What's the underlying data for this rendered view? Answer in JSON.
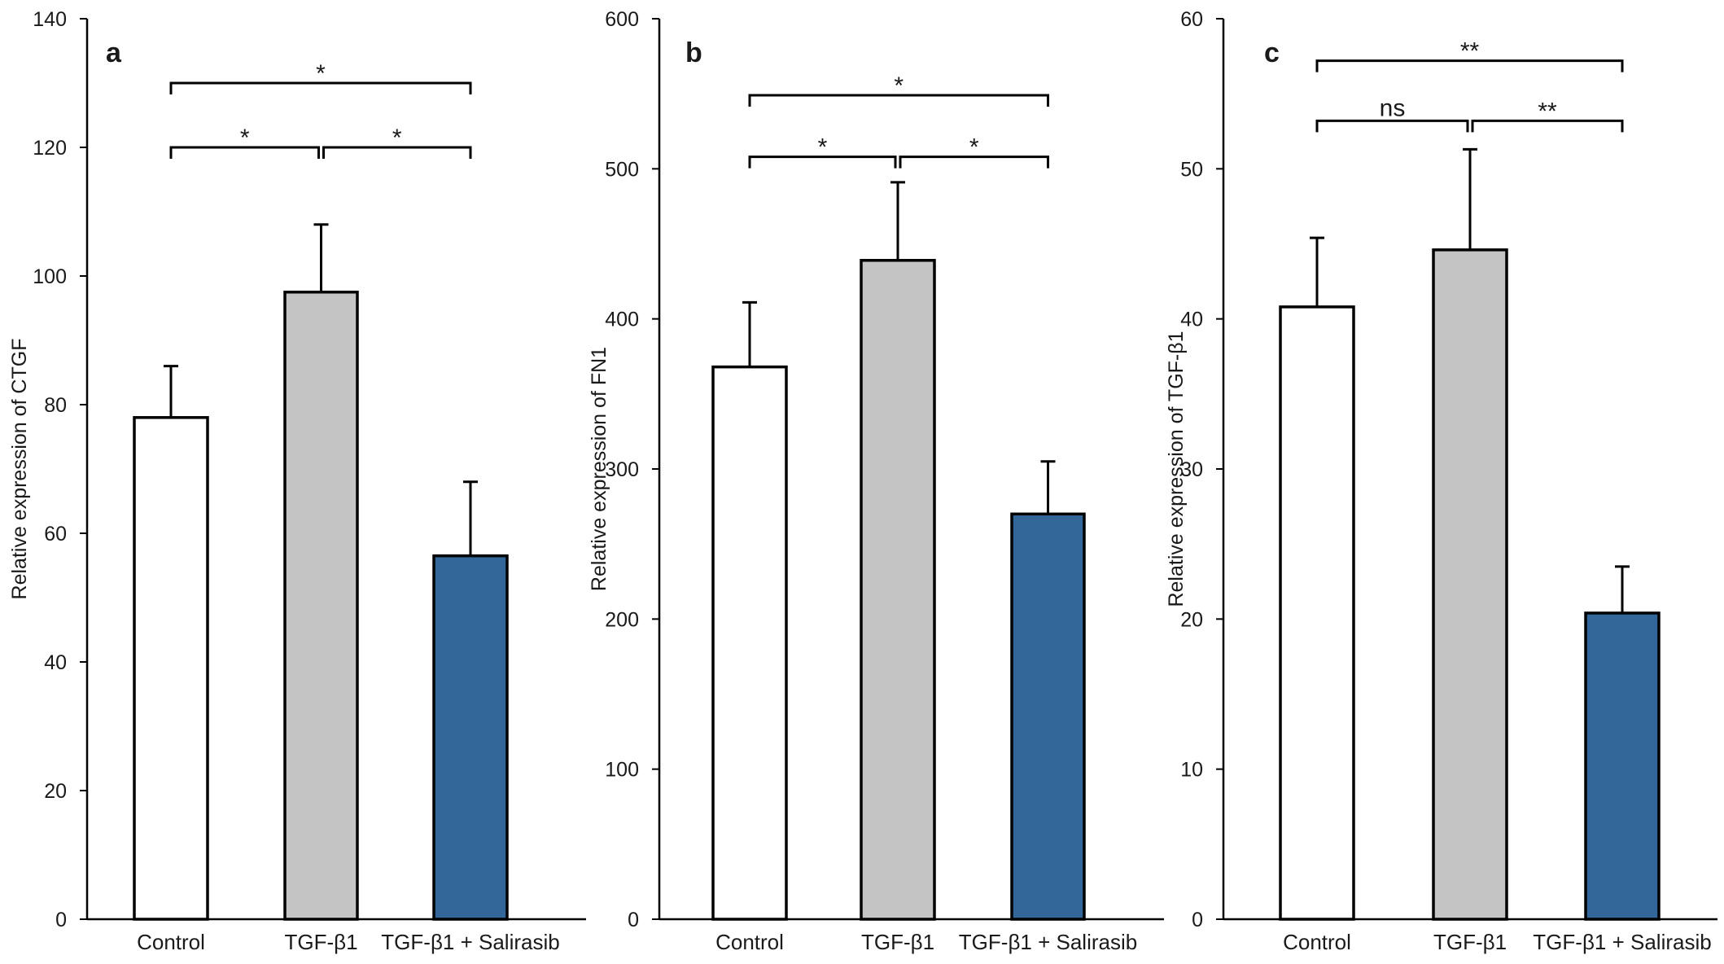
{
  "colors": {
    "control": "#ffffff",
    "tgf": "#c4c4c4",
    "salirasib": "#33679a",
    "ink": "#000000"
  },
  "chart_data": [
    {
      "type": "bar",
      "panel_label": "a",
      "categories": [
        "Control",
        "TGF-β1",
        "TGF-β1 + Salirasib"
      ],
      "values": [
        78,
        97.5,
        56.5
      ],
      "errors": [
        8,
        10.5,
        11.5
      ],
      "ylabel": "Relative expression of CTGF",
      "ylim": [
        0,
        140
      ],
      "yticks": [
        0,
        20,
        40,
        60,
        80,
        100,
        120,
        140
      ],
      "grid": false,
      "significance": [
        {
          "from": 0,
          "to": 2,
          "y": 130,
          "label": "*"
        },
        {
          "from": 0,
          "to": 1,
          "y": 120,
          "label": "*"
        },
        {
          "from": 1,
          "to": 2,
          "y": 120,
          "label": "*"
        }
      ]
    },
    {
      "type": "bar",
      "panel_label": "b",
      "categories": [
        "Control",
        "TGF-β1",
        "TGF-β1 + Salirasib"
      ],
      "values": [
        368,
        439,
        270
      ],
      "errors": [
        43,
        52,
        35
      ],
      "ylabel": "Relative expression of FN1",
      "ylim": [
        0,
        600
      ],
      "yticks": [
        0,
        100,
        200,
        300,
        400,
        500,
        600
      ],
      "grid": false,
      "significance": [
        {
          "from": 0,
          "to": 2,
          "y": 549,
          "label": "*"
        },
        {
          "from": 0,
          "to": 1,
          "y": 508,
          "label": "*"
        },
        {
          "from": 1,
          "to": 2,
          "y": 508,
          "label": "*"
        }
      ]
    },
    {
      "type": "bar",
      "panel_label": "c",
      "categories": [
        "Control",
        "TGF-β1",
        "TGF-β1 + Salirasib"
      ],
      "values": [
        40.8,
        44.6,
        20.4
      ],
      "errors": [
        4.6,
        6.7,
        3.1
      ],
      "ylabel": "Relative expression of TGF-β1",
      "ylim": [
        0,
        60
      ],
      "yticks": [
        0,
        10,
        20,
        30,
        40,
        50,
        60
      ],
      "grid": false,
      "significance": [
        {
          "from": 0,
          "to": 2,
          "y": 57.2,
          "label": "**"
        },
        {
          "from": 0,
          "to": 1,
          "y": 53.2,
          "label": "ns"
        },
        {
          "from": 1,
          "to": 2,
          "y": 53.2,
          "label": "**"
        }
      ]
    }
  ]
}
